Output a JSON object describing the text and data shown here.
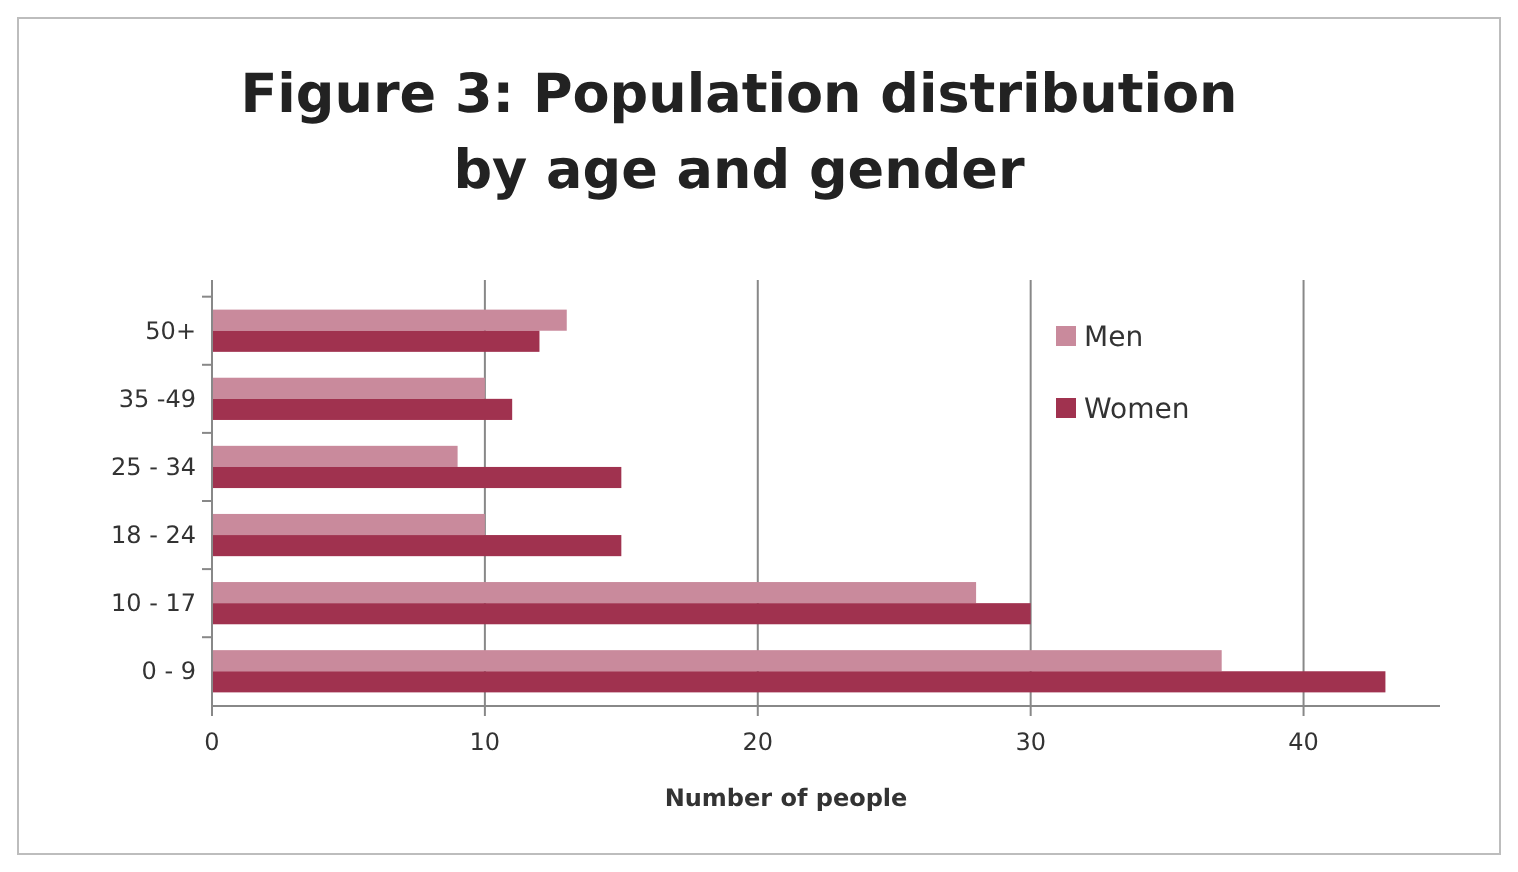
{
  "chart_data": {
    "type": "bar",
    "orientation": "horizontal",
    "title": "Figure 3: Population distribution by age and gender",
    "xlabel": "Number of people",
    "categories": [
      "50+",
      "35 -49",
      "25 - 34",
      "18 - 24",
      "10 - 17",
      "0 - 9"
    ],
    "series": [
      {
        "name": "Men",
        "color": "#c98a9c",
        "values": [
          13,
          10,
          9,
          10,
          28,
          37
        ]
      },
      {
        "name": "Women",
        "color": "#a0324f",
        "values": [
          12,
          11,
          15,
          15,
          30,
          43
        ]
      }
    ],
    "xlim": [
      0,
      45
    ],
    "xticks": [
      0,
      10,
      20,
      30,
      40
    ],
    "grid": "x",
    "legend": "top right"
  }
}
